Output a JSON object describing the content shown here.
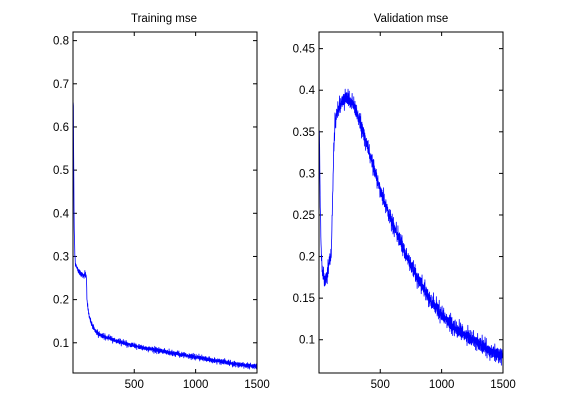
{
  "chart_data": [
    {
      "type": "line",
      "title": "Training mse",
      "xlabel": "",
      "ylabel": "",
      "xlim": [
        1,
        1500
      ],
      "ylim": [
        0.03,
        0.82
      ],
      "xticks": [
        500,
        1000,
        1500
      ],
      "yticks": [
        0.1,
        0.2,
        0.3,
        0.4,
        0.5,
        0.6,
        0.7,
        0.8
      ],
      "grid": false,
      "legend": "none",
      "series": [
        {
          "color": "#0000ff",
          "x": [
            1,
            3,
            6,
            10,
            15,
            20,
            25,
            30,
            40,
            50,
            60,
            70,
            80,
            90,
            100,
            110,
            115,
            120,
            130,
            150,
            175,
            200,
            250,
            300,
            350,
            400,
            500,
            600,
            700,
            800,
            900,
            1000,
            1100,
            1200,
            1300,
            1400,
            1500
          ],
          "y": [
            0.36,
            0.72,
            0.55,
            0.38,
            0.31,
            0.285,
            0.28,
            0.275,
            0.27,
            0.265,
            0.262,
            0.26,
            0.258,
            0.256,
            0.26,
            0.255,
            0.2,
            0.185,
            0.165,
            0.145,
            0.13,
            0.122,
            0.115,
            0.11,
            0.105,
            0.1,
            0.093,
            0.087,
            0.082,
            0.077,
            0.072,
            0.067,
            0.062,
            0.057,
            0.052,
            0.048,
            0.045
          ],
          "noise_amplitude": 0.009
        }
      ]
    },
    {
      "type": "line",
      "title": "Validation mse",
      "xlabel": "",
      "ylabel": "",
      "xlim": [
        1,
        1500
      ],
      "ylim": [
        0.06,
        0.47
      ],
      "xticks": [
        500,
        1000,
        1500
      ],
      "yticks": [
        0.1,
        0.15,
        0.2,
        0.25,
        0.3,
        0.35,
        0.4,
        0.45
      ],
      "grid": false,
      "legend": "none",
      "series": [
        {
          "color": "#0000ff",
          "x": [
            1,
            5,
            10,
            20,
            30,
            50,
            70,
            90,
            100,
            110,
            120,
            130,
            150,
            180,
            200,
            230,
            250,
            280,
            300,
            350,
            400,
            450,
            500,
            600,
            700,
            800,
            900,
            1000,
            1100,
            1200,
            1300,
            1400,
            1500
          ],
          "y": [
            0.28,
            0.35,
            0.27,
            0.2,
            0.18,
            0.17,
            0.18,
            0.2,
            0.2,
            0.26,
            0.32,
            0.36,
            0.375,
            0.385,
            0.388,
            0.39,
            0.388,
            0.382,
            0.375,
            0.355,
            0.33,
            0.305,
            0.28,
            0.24,
            0.205,
            0.175,
            0.15,
            0.13,
            0.115,
            0.105,
            0.095,
            0.087,
            0.08
          ],
          "noise_amplitude": 0.014
        }
      ]
    }
  ]
}
